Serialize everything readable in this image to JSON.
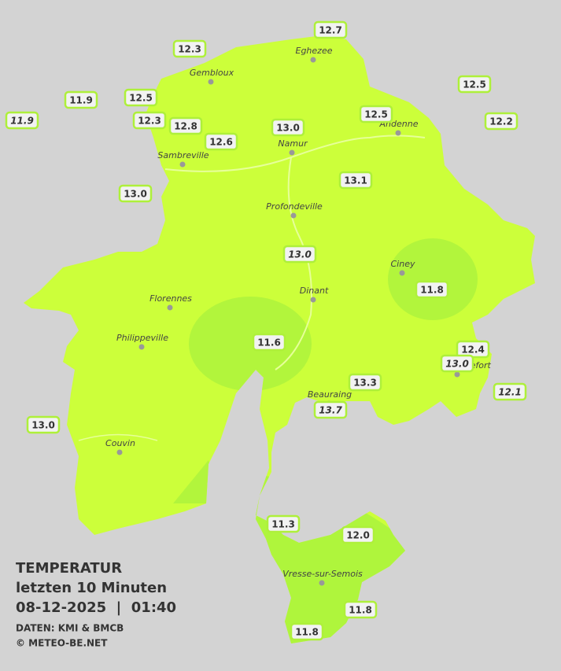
{
  "map": {
    "towns": [
      {
        "name": "Eghezee"
      },
      {
        "name": "Gembloux"
      },
      {
        "name": "Andenne"
      },
      {
        "name": "Namur"
      },
      {
        "name": "Sambreville"
      },
      {
        "name": "Profondeville"
      },
      {
        "name": "Ciney"
      },
      {
        "name": "Dinant"
      },
      {
        "name": "Florennes"
      },
      {
        "name": "Philippeville"
      },
      {
        "name": "Rochefort"
      },
      {
        "name": "Beauraing"
      },
      {
        "name": "Couvin"
      },
      {
        "name": "Vresse-sur-Semois"
      }
    ],
    "stations": [
      {
        "value": "12.7",
        "italic": false
      },
      {
        "value": "12.3",
        "italic": false
      },
      {
        "value": "12.5",
        "italic": false
      },
      {
        "value": "11.9",
        "italic": false
      },
      {
        "value": "12.5",
        "italic": false
      },
      {
        "value": "11.9",
        "italic": true
      },
      {
        "value": "12.3",
        "italic": false
      },
      {
        "value": "12.8",
        "italic": false
      },
      {
        "value": "13.0",
        "italic": false
      },
      {
        "value": "12.5",
        "italic": false
      },
      {
        "value": "12.2",
        "italic": false
      },
      {
        "value": "12.6",
        "italic": false
      },
      {
        "value": "13.0",
        "italic": false
      },
      {
        "value": "13.1",
        "italic": false
      },
      {
        "value": "13.0",
        "italic": true
      },
      {
        "value": "11.8",
        "italic": false
      },
      {
        "value": "11.6",
        "italic": false
      },
      {
        "value": "12.4",
        "italic": false
      },
      {
        "value": "13.0",
        "italic": true
      },
      {
        "value": "13.3",
        "italic": false
      },
      {
        "value": "12.1",
        "italic": true
      },
      {
        "value": "13.7",
        "italic": true
      },
      {
        "value": "13.0",
        "italic": false
      },
      {
        "value": "11.3",
        "italic": false
      },
      {
        "value": "12.0",
        "italic": false
      },
      {
        "value": "11.8",
        "italic": false
      },
      {
        "value": "11.8",
        "italic": false
      }
    ]
  },
  "legend": {
    "title": "TEMPERATUR",
    "subtitle": "letzten 10 Minuten",
    "datetime": "08-12-2025  |  01:40",
    "source": "DATEN: KMI & BMCB",
    "copyright": "© METEO-BE.NET"
  }
}
